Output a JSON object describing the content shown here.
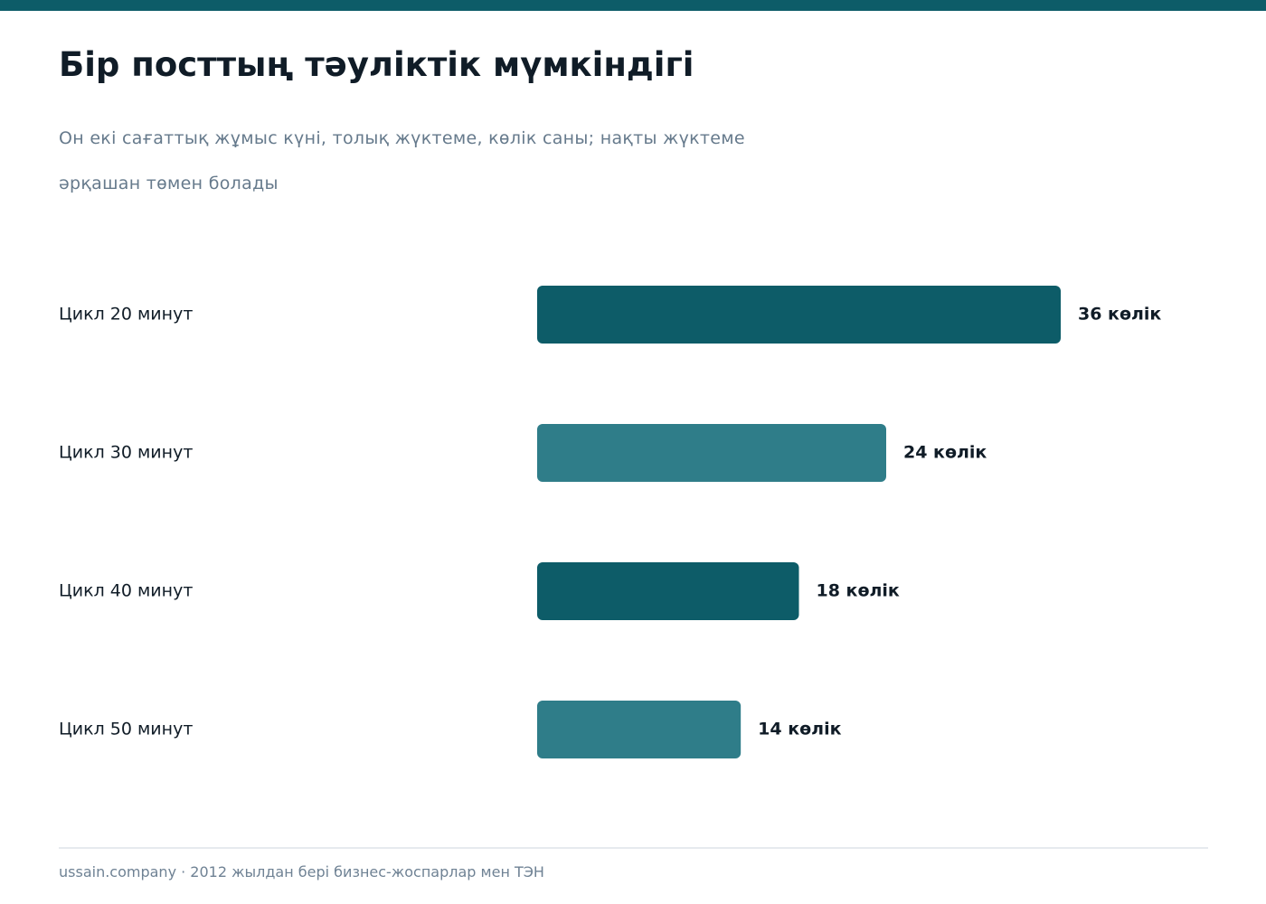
{
  "header": {
    "title": "Бір посттың тәуліктік мүмкіндігі",
    "subtitle_line1": "Он екі сағаттық жұмыс күні, толық жүктеме, көлік саны; нақты жүктеме",
    "subtitle_line2": "әрқашан төмен болады"
  },
  "footer": {
    "text": "ussain.company · 2012 жылдан бері бизнес-жоспарлар мен ТЭН"
  },
  "colors": {
    "accent_dark": "#0d5c68",
    "accent_light": "#2f7d89",
    "text_dark": "#101c27",
    "text_muted": "#667a8c"
  },
  "chart_data": {
    "type": "bar",
    "orientation": "horizontal",
    "categories": [
      "Цикл 20 минут",
      "Цикл 30 минут",
      "Цикл 40 минут",
      "Цикл 50 минут"
    ],
    "values": [
      36,
      24,
      18,
      14
    ],
    "value_labels": [
      "36 көлік",
      "24 көлік",
      "18 көлік",
      "14 көлік"
    ],
    "bar_colors": [
      "#0d5c68",
      "#2f7d89",
      "#0d5c68",
      "#2f7d89"
    ],
    "xlim": [
      0,
      36
    ],
    "grid": false,
    "legend": "none"
  }
}
